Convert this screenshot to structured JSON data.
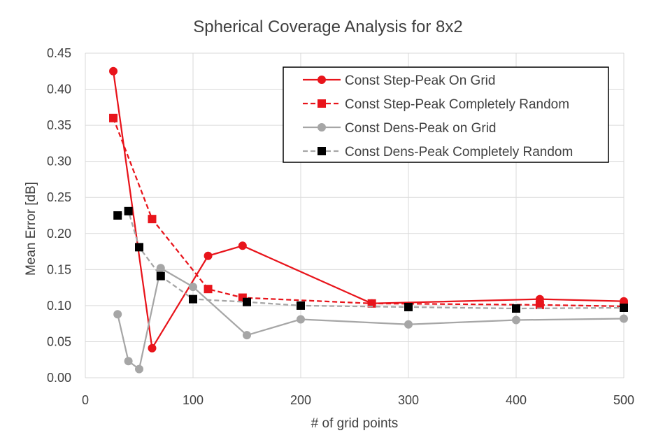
{
  "chart_data": {
    "type": "line",
    "title": "Spherical Coverage Analysis for 8x2",
    "xlabel": "# of grid points",
    "ylabel": "Mean Error [dB]",
    "xlim": [
      0,
      500
    ],
    "ylim": [
      0,
      0.45
    ],
    "x_ticks": [
      "0",
      "100",
      "200",
      "300",
      "400",
      "500"
    ],
    "y_ticks": [
      "0.00",
      "0.05",
      "0.10",
      "0.15",
      "0.20",
      "0.25",
      "0.30",
      "0.35",
      "0.40",
      "0.45"
    ],
    "grid": true,
    "legend_position": "top-right",
    "series": [
      {
        "name": "Const Step-Peak On Grid",
        "color": "#e8141b",
        "dash": "solid",
        "marker": "circle",
        "points": [
          [
            26,
            0.425
          ],
          [
            62,
            0.041
          ],
          [
            114,
            0.169
          ],
          [
            146,
            0.183
          ],
          [
            266,
            0.103
          ],
          [
            422,
            0.109
          ],
          [
            500,
            0.106
          ]
        ]
      },
      {
        "name": "Const Step-Peak Completely Random",
        "color": "#e8141b",
        "dash": "dashed",
        "marker": "square",
        "points": [
          [
            26,
            0.36
          ],
          [
            62,
            0.22
          ],
          [
            114,
            0.123
          ],
          [
            146,
            0.111
          ],
          [
            266,
            0.103
          ],
          [
            422,
            0.101
          ],
          [
            500,
            0.099
          ]
        ]
      },
      {
        "name": "Const Dens-Peak on Grid",
        "color": "#a6a6a6",
        "dash": "solid",
        "marker": "circle",
        "points": [
          [
            30,
            0.088
          ],
          [
            40,
            0.023
          ],
          [
            50,
            0.012
          ],
          [
            70,
            0.152
          ],
          [
            100,
            0.126
          ],
          [
            150,
            0.059
          ],
          [
            200,
            0.081
          ],
          [
            300,
            0.074
          ],
          [
            400,
            0.08
          ],
          [
            500,
            0.082
          ]
        ]
      },
      {
        "name": "Const Dens-Peak Completely Random",
        "color": "#a6a6a6",
        "dash": "dashed",
        "marker": "square",
        "marker_color": "#000000",
        "points": [
          [
            30,
            0.225
          ],
          [
            40,
            0.231
          ],
          [
            50,
            0.181
          ],
          [
            70,
            0.141
          ],
          [
            100,
            0.109
          ],
          [
            150,
            0.105
          ],
          [
            200,
            0.1
          ],
          [
            300,
            0.098
          ],
          [
            400,
            0.096
          ],
          [
            500,
            0.097
          ]
        ]
      }
    ]
  }
}
